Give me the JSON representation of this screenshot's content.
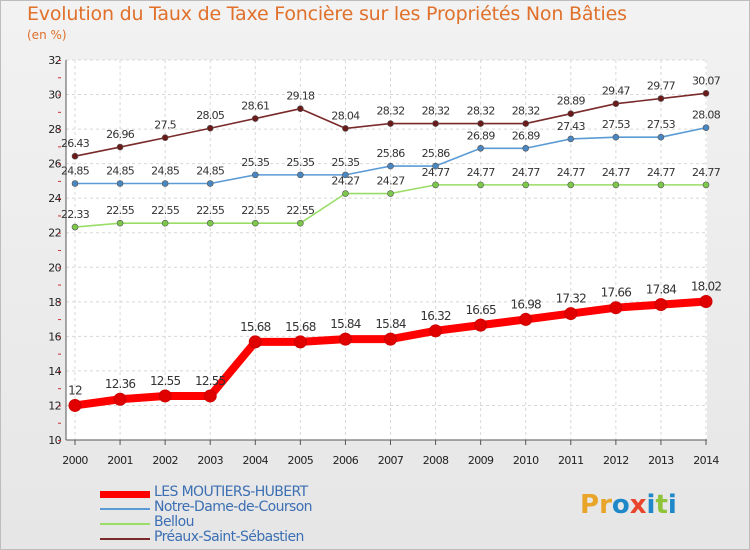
{
  "title": "Evolution du Taux de Taxe Foncière sur les Propriétés Non Bâties",
  "unit_label": "(en %)",
  "logo": {
    "letters": [
      "P",
      "r",
      "o",
      "x",
      "i",
      "t",
      "i"
    ],
    "colors": [
      "#e8a52a",
      "#e8a52a",
      "#1e88c8",
      "#e8452a",
      "#1e88c8",
      "#8fc43a",
      "#1e88c8"
    ]
  },
  "chart_data": {
    "type": "line",
    "title": "Evolution du Taux de Taxe Foncière sur les Propriétés Non Bâties",
    "ylabel": "(en %)",
    "xlabel": "",
    "ylim": [
      10,
      32
    ],
    "yticks": [
      10,
      12,
      14,
      16,
      18,
      20,
      22,
      24,
      26,
      28,
      30,
      32
    ],
    "x": [
      "2000",
      "2001",
      "2002",
      "2003",
      "2004",
      "2005",
      "2006",
      "2007",
      "2008",
      "2009",
      "2010",
      "2011",
      "2012",
      "2013",
      "2014"
    ],
    "series": [
      {
        "name": "LES MOUTIERS-HUBERT",
        "color": "#ff0000",
        "marker": "#e00000",
        "emphasis": true,
        "values": [
          12,
          12.36,
          12.55,
          12.55,
          15.68,
          15.68,
          15.84,
          15.84,
          16.32,
          16.65,
          16.98,
          17.32,
          17.66,
          17.84,
          18.02
        ],
        "labels": [
          "12",
          "12.36",
          "12.55",
          "12.55",
          "15.68",
          "15.68",
          "15.84",
          "15.84",
          "16.32",
          "16.65",
          "16.98",
          "17.32",
          "17.66",
          "17.84",
          "18.02"
        ]
      },
      {
        "name": "Notre-Dame-de-Courson",
        "color": "#5b9bd5",
        "marker": "#4a86c0",
        "emphasis": false,
        "values": [
          24.85,
          24.85,
          24.85,
          24.85,
          25.35,
          25.35,
          25.35,
          25.86,
          25.86,
          26.89,
          26.89,
          27.43,
          27.53,
          27.53,
          28.08
        ],
        "labels": [
          "24.85",
          "24.85",
          "24.85",
          "24.85",
          "25.35",
          "25.35",
          "25.35",
          "25.86",
          "25.86",
          "26.89",
          "26.89",
          "27.43",
          "27.53",
          "27.53",
          "28.08"
        ]
      },
      {
        "name": "Bellou",
        "color": "#99dd66",
        "marker": "#7cc84a",
        "emphasis": false,
        "values": [
          22.33,
          22.55,
          22.55,
          22.55,
          22.55,
          22.55,
          24.27,
          24.27,
          24.77,
          24.77,
          24.77,
          24.77,
          24.77,
          24.77,
          24.77
        ],
        "labels": [
          "22.33",
          "22.55",
          "22.55",
          "22.55",
          "22.55",
          "22.55",
          "24.27",
          "24.27",
          "24.77",
          "24.77",
          "24.77",
          "24.77",
          "24.77",
          "24.77",
          "24.77"
        ]
      },
      {
        "name": "Préaux-Saint-Sébastien",
        "color": "#7a2a2a",
        "marker": "#6b1a1a",
        "emphasis": false,
        "values": [
          26.43,
          26.96,
          27.5,
          28.05,
          28.61,
          29.18,
          28.04,
          28.32,
          28.32,
          28.32,
          28.32,
          28.89,
          29.47,
          29.77,
          30.07
        ],
        "labels": [
          "26.43",
          "26.96",
          "27.5",
          "28.05",
          "28.61",
          "29.18",
          "28.04",
          "28.32",
          "28.32",
          "28.32",
          "28.32",
          "28.89",
          "29.47",
          "29.77",
          "30.07"
        ]
      }
    ],
    "legend": [
      "LES MOUTIERS-HUBERT",
      "Notre-Dame-de-Courson",
      "Bellou",
      "Préaux-Saint-Sébastien"
    ],
    "grid": true,
    "legend_position": "bottom-left"
  }
}
